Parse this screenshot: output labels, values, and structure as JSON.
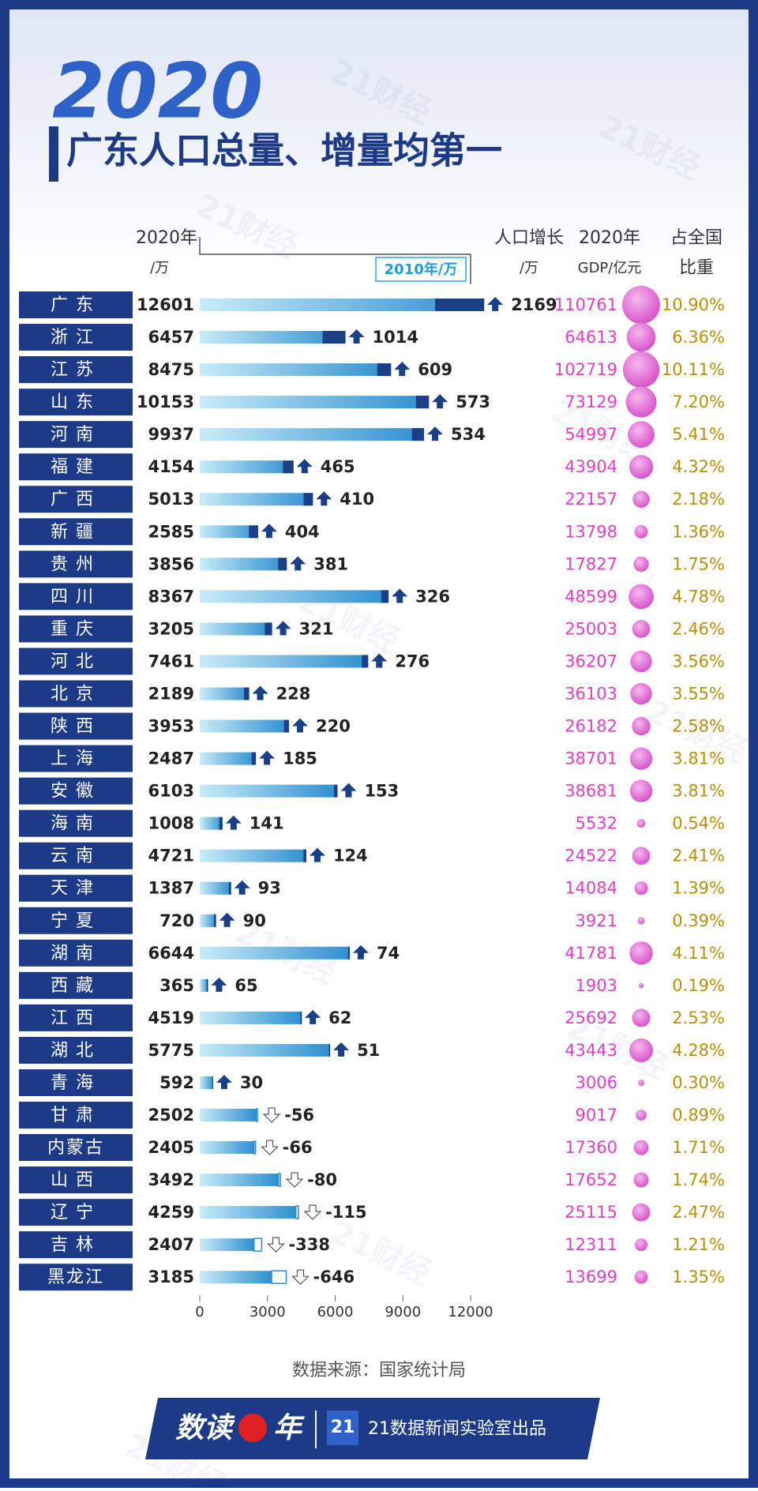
{
  "chart_data": {
    "type": "bar",
    "orientation": "horizontal",
    "title": "2020",
    "subtitle": "广东人口总量、增量均第一",
    "annotation": "2010年/万",
    "categories": [
      "广东",
      "浙江",
      "江苏",
      "山东",
      "河南",
      "福建",
      "广西",
      "新疆",
      "贵州",
      "四川",
      "重庆",
      "河北",
      "北京",
      "陕西",
      "上海",
      "安徽",
      "海南",
      "云南",
      "天津",
      "宁夏",
      "湖南",
      "西藏",
      "江西",
      "湖北",
      "青海",
      "甘肃",
      "内蒙古",
      "山西",
      "辽宁",
      "吉林",
      "黑龙江"
    ],
    "series": [
      {
        "name": "2020年",
        "unit": "/万",
        "color": "#2e8fd0",
        "values": [
          12601,
          6457,
          8475,
          10153,
          9937,
          4154,
          5013,
          2585,
          3856,
          8367,
          3205,
          7461,
          2189,
          3953,
          2487,
          6103,
          1008,
          4721,
          1387,
          720,
          6644,
          365,
          4519,
          5775,
          592,
          2502,
          2405,
          3492,
          4259,
          2407,
          3185
        ]
      },
      {
        "name": "人口增长",
        "unit": "/万",
        "color": "#1b3f86",
        "values": [
          2169,
          1014,
          609,
          573,
          534,
          465,
          410,
          404,
          381,
          326,
          321,
          276,
          228,
          220,
          185,
          153,
          141,
          124,
          93,
          90,
          74,
          65,
          62,
          51,
          30,
          -56,
          -66,
          -80,
          -115,
          -338,
          -646
        ]
      }
    ],
    "gdp": {
      "name": "2020年",
      "unit": "GDP/亿元",
      "color": "#e040c8",
      "values": [
        110761,
        64613,
        102719,
        73129,
        54997,
        43904,
        22157,
        13798,
        17827,
        48599,
        25003,
        36207,
        36103,
        26182,
        38701,
        38681,
        5532,
        24522,
        14084,
        3921,
        41781,
        1903,
        25692,
        43443,
        3006,
        9017,
        17360,
        17652,
        25115,
        12311,
        13699
      ]
    },
    "share": {
      "name": "占全国",
      "unit": "比重",
      "color": "#b8900a",
      "values": [
        10.9,
        6.36,
        10.11,
        7.2,
        5.41,
        4.32,
        2.18,
        1.36,
        1.75,
        4.78,
        2.46,
        3.56,
        3.55,
        2.58,
        3.81,
        3.81,
        0.54,
        2.41,
        1.39,
        0.39,
        4.11,
        0.19,
        2.53,
        4.28,
        0.3,
        0.89,
        1.71,
        1.74,
        2.47,
        1.21,
        1.35
      ],
      "value_labels": [
        "10.90%",
        "6.36%",
        "10.11%",
        "7.20%",
        "5.41%",
        "4.32%",
        "2.18%",
        "1.36%",
        "1.75%",
        "4.78%",
        "2.46%",
        "3.56%",
        "3.55%",
        "2.58%",
        "3.81%",
        "3.81%",
        "0.54%",
        "2.41%",
        "1.39%",
        "0.39%",
        "4.11%",
        "0.19%",
        "2.53%",
        "4.28%",
        "0.30%",
        "0.89%",
        "1.71%",
        "1.74%",
        "2.47%",
        "1.21%",
        "1.35%"
      ]
    },
    "xlim": [
      0,
      12000
    ],
    "xticks": [
      0,
      3000,
      6000,
      9000,
      12000
    ],
    "source": "数据来源：国家统计局",
    "watermark": "21财经"
  },
  "footer": {
    "brand": "数读",
    "brand_suffix": "年",
    "logo": "21",
    "credit": "21数据新闻实验室出品"
  }
}
